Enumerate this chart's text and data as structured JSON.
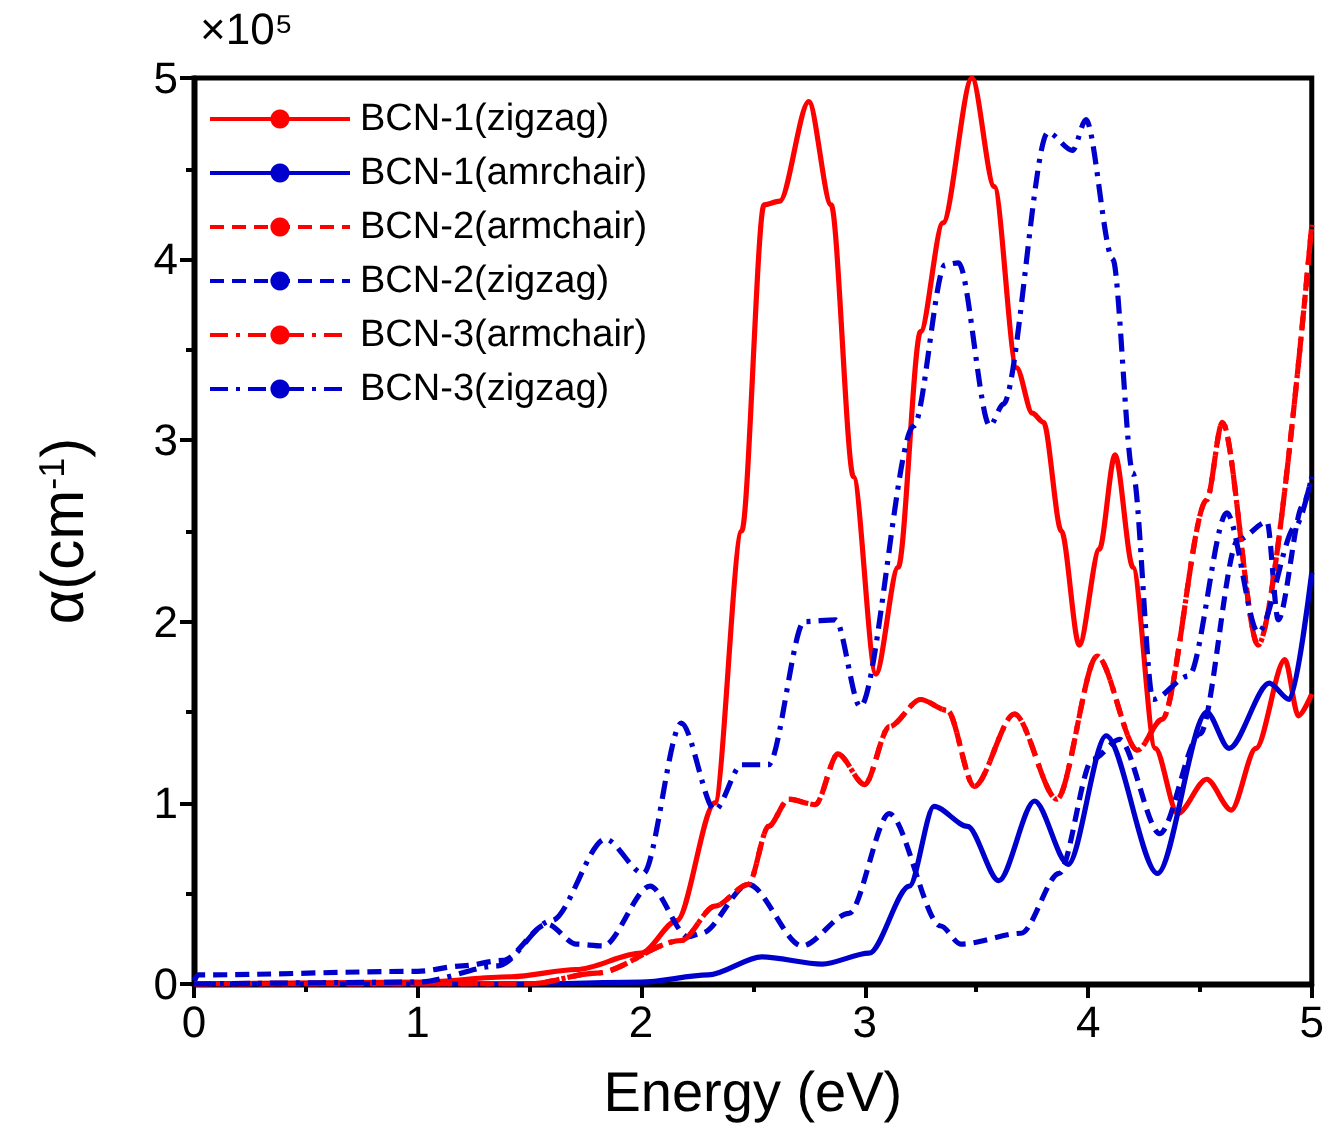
{
  "chart_data": {
    "type": "line",
    "xlabel": "Energy (eV)",
    "ylabel": "α(cm$^{-1}$)",
    "annotations": [
      "×10⁵"
    ],
    "xlim": [
      0,
      5
    ],
    "xticks": [
      0,
      1,
      2,
      3,
      4,
      5
    ],
    "ylim": [
      0,
      5
    ],
    "yticks": [
      0,
      1,
      2,
      3,
      4,
      5
    ],
    "grid": false,
    "legend": "top left",
    "marker": "none",
    "series": [
      {
        "name": "BCN-1(zigzag)",
        "color": "#ff0000",
        "line_style": "solid",
        "x": [
          0,
          1.0,
          1.42,
          1.71,
          2.0,
          2.16,
          2.33,
          2.45,
          2.55,
          2.62,
          2.75,
          2.85,
          2.95,
          3.05,
          3.15,
          3.25,
          3.35,
          3.48,
          3.58,
          3.68,
          3.75,
          3.8,
          3.88,
          3.96,
          4.05,
          4.12,
          4.2,
          4.3,
          4.4,
          4.53,
          4.64,
          4.75,
          4.88,
          4.94,
          5.0
        ],
        "values": [
          0,
          0.01,
          0.04,
          0.08,
          0.17,
          0.35,
          1.0,
          2.5,
          4.3,
          4.32,
          4.87,
          4.3,
          2.8,
          1.71,
          2.3,
          3.6,
          4.2,
          5.0,
          4.4,
          3.4,
          3.15,
          3.1,
          2.5,
          1.87,
          2.4,
          2.92,
          2.3,
          1.3,
          0.94,
          1.13,
          0.96,
          1.3,
          1.79,
          1.48,
          1.6
        ]
      },
      {
        "name": "BCN-1(amrchair)",
        "color": "#0000cc",
        "line_style": "solid",
        "x": [
          0,
          1.5,
          2.0,
          2.3,
          2.54,
          2.81,
          3.02,
          3.2,
          3.31,
          3.46,
          3.6,
          3.76,
          3.91,
          4.08,
          4.31,
          4.53,
          4.63,
          4.81,
          4.9,
          5.0
        ],
        "values": [
          0,
          0.0,
          0.01,
          0.05,
          0.15,
          0.11,
          0.17,
          0.54,
          0.98,
          0.87,
          0.57,
          1.01,
          0.66,
          1.37,
          0.61,
          1.5,
          1.3,
          1.66,
          1.57,
          2.27
        ]
      },
      {
        "name": "BCN-2(armchair)",
        "color": "#ff0000",
        "line_style": "dashed",
        "x": [
          0,
          1.5,
          1.8,
          2.18,
          2.33,
          2.48,
          2.57,
          2.66,
          2.78,
          2.88,
          3.0,
          3.11,
          3.25,
          3.37,
          3.49,
          3.67,
          3.86,
          4.04,
          4.22,
          4.33,
          4.53,
          4.6,
          4.76,
          5.0
        ],
        "values": [
          0,
          0.0,
          0.06,
          0.24,
          0.43,
          0.55,
          0.87,
          1.02,
          0.99,
          1.27,
          1.1,
          1.42,
          1.57,
          1.51,
          1.09,
          1.49,
          1.02,
          1.81,
          1.29,
          1.46,
          2.67,
          3.1,
          1.87,
          4.19
        ]
      },
      {
        "name": "BCN-2(zigzag)",
        "color": "#0000cc",
        "line_style": "dashed",
        "x": [
          0,
          0.02,
          1.0,
          1.2,
          1.38,
          1.58,
          1.71,
          1.83,
          2.04,
          2.21,
          2.27,
          2.48,
          2.72,
          2.93,
          3.11,
          3.34,
          3.43,
          3.7,
          3.87,
          4.02,
          4.14,
          4.32,
          4.5,
          4.67,
          4.8,
          4.85,
          4.96,
          5.0
        ],
        "values": [
          0.02,
          0.05,
          0.07,
          0.1,
          0.13,
          0.33,
          0.22,
          0.21,
          0.54,
          0.26,
          0.28,
          0.55,
          0.21,
          0.39,
          0.94,
          0.32,
          0.22,
          0.28,
          0.61,
          1.24,
          1.35,
          0.83,
          1.38,
          2.45,
          2.55,
          2.01,
          2.64,
          2.8
        ]
      },
      {
        "name": "BCN-3(armchair)",
        "color": "#ff0000",
        "line_style": "dashdot",
        "x": [
          0,
          1.5,
          1.8,
          2.18,
          2.33,
          2.48,
          2.57,
          2.66,
          2.78,
          2.88,
          3.0,
          3.11,
          3.25,
          3.37,
          3.49,
          3.67,
          3.86,
          4.04,
          4.22,
          4.33,
          4.53,
          4.6,
          4.76,
          5.0
        ],
        "values": [
          0,
          0.0,
          0.06,
          0.24,
          0.43,
          0.55,
          0.87,
          1.02,
          0.99,
          1.27,
          1.1,
          1.42,
          1.57,
          1.51,
          1.09,
          1.49,
          1.02,
          1.81,
          1.29,
          1.46,
          2.67,
          3.1,
          1.87,
          4.19
        ]
      },
      {
        "name": "BCN-3(zigzag)",
        "color": "#0000cc",
        "line_style": "dashdot",
        "x": [
          0,
          1.0,
          1.36,
          1.6,
          1.84,
          2.01,
          2.18,
          2.33,
          2.45,
          2.57,
          2.73,
          2.87,
          2.98,
          3.22,
          3.36,
          3.42,
          3.56,
          3.62,
          3.82,
          3.93,
          3.99,
          4.11,
          4.2,
          4.29,
          4.45,
          4.62,
          4.76,
          4.93,
          5.0
        ],
        "values": [
          0,
          0.01,
          0.1,
          0.35,
          0.8,
          0.61,
          1.44,
          0.96,
          1.21,
          1.21,
          2.0,
          2.01,
          1.53,
          3.08,
          3.97,
          3.98,
          3.08,
          3.2,
          4.7,
          4.6,
          4.77,
          4.0,
          2.82,
          1.57,
          1.7,
          2.6,
          1.94,
          2.53,
          2.8
        ]
      }
    ]
  }
}
